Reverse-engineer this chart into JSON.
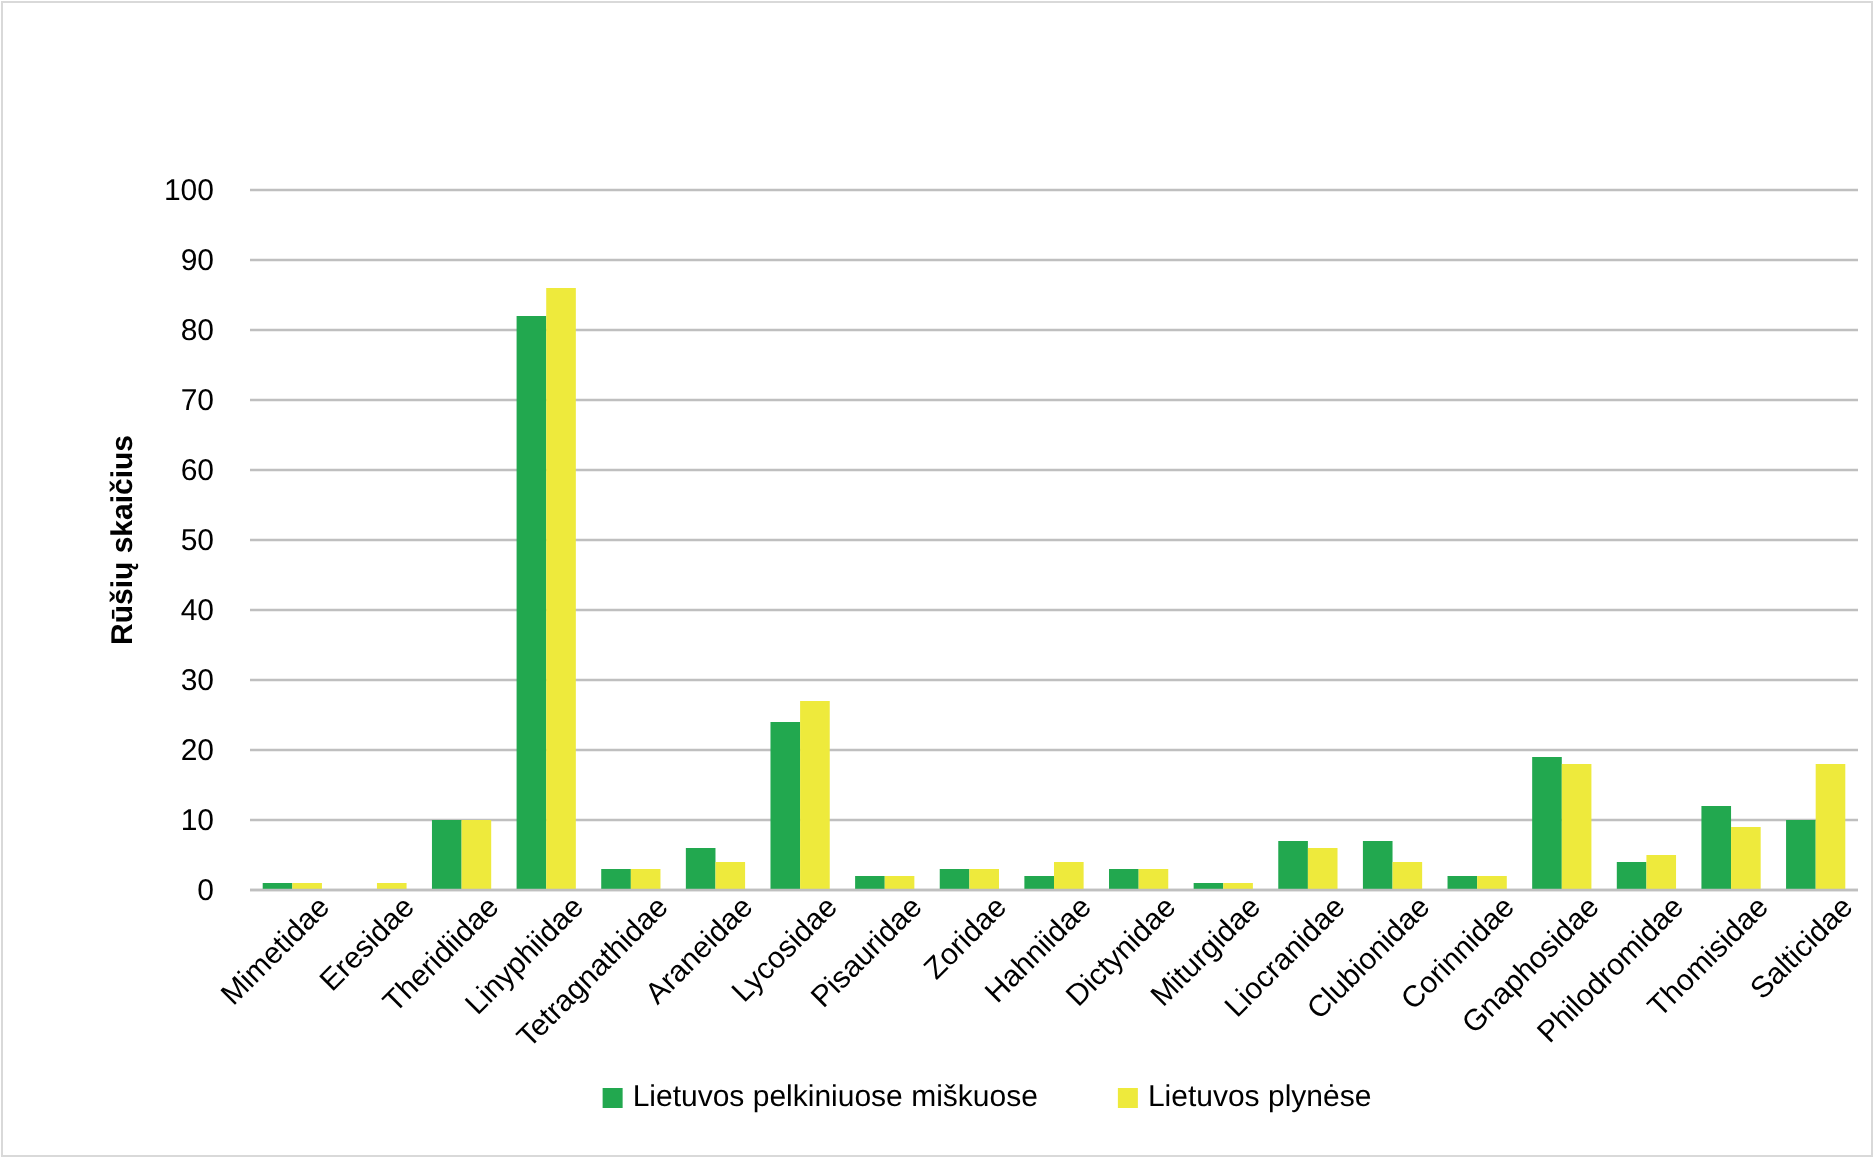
{
  "chart_data": {
    "type": "bar",
    "ylabel": "Rūšių skaičius",
    "categories": [
      "Mimetidae",
      "Eresidae",
      "Theridiidae",
      "Linyphiidae",
      "Tetragnathidae",
      "Araneidae",
      "Lycosidae",
      "Pisauridae",
      "Zoridae",
      "Hahniidae",
      "Dictynidae",
      "Miturgidae",
      "Liocranidae",
      "Clubionidae",
      "Corinnidae",
      "Gnaphosidae",
      "Philodromidae",
      "Thomisidae",
      "Salticidae"
    ],
    "series": [
      {
        "name": "Lietuvos pelkiniuose miškuose",
        "color": "#22a84f",
        "values": [
          1,
          0,
          10,
          82,
          3,
          6,
          24,
          2,
          3,
          2,
          3,
          1,
          7,
          7,
          2,
          19,
          4,
          12,
          10
        ]
      },
      {
        "name": "Lietuvos plynėse",
        "color": "#eeea3c",
        "values": [
          1,
          1,
          10,
          86,
          3,
          4,
          27,
          2,
          3,
          4,
          3,
          1,
          6,
          4,
          2,
          18,
          5,
          9,
          18
        ]
      }
    ],
    "ylim": [
      0,
      100
    ],
    "yticks": [
      0,
      10,
      20,
      30,
      40,
      50,
      60,
      70,
      80,
      90,
      100
    ],
    "grid": "y",
    "legend": "bottom"
  }
}
